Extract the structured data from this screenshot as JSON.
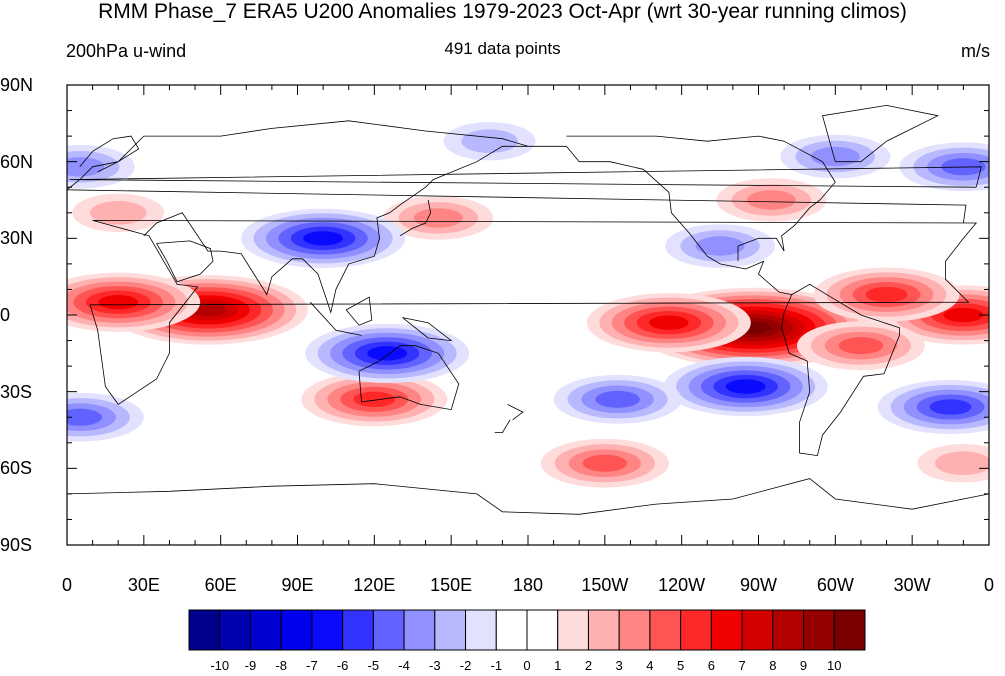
{
  "figure": {
    "title": "RMM Phase_7 ERA5 U200 Anomalies 1979-2023 Oct-Apr (wrt 30-year running climos)",
    "left_label": "200hPa u-wind",
    "center_label": "491 data points",
    "right_label": "m/s"
  },
  "axes": {
    "lat_labels": [
      "90N",
      "60N",
      "30N",
      "0",
      "30S",
      "60S",
      "90S"
    ],
    "lon_labels": [
      "0",
      "30E",
      "60E",
      "90E",
      "120E",
      "150E",
      "180",
      "150W",
      "120W",
      "90W",
      "60W",
      "30W",
      "0"
    ]
  },
  "colorbar": {
    "labels": [
      "-10",
      "-9",
      "-8",
      "-7",
      "-6",
      "-5",
      "-4",
      "-3",
      "-2",
      "-1",
      "0",
      "1",
      "2",
      "3",
      "4",
      "5",
      "6",
      "7",
      "8",
      "9",
      "10"
    ],
    "colors": [
      "#00008c",
      "#0000b0",
      "#0000d2",
      "#0000ee",
      "#0a0aff",
      "#3333ff",
      "#6262ff",
      "#9090ff",
      "#b8b8ff",
      "#e2e2ff",
      "#ffffff",
      "#ffffff",
      "#ffdcdc",
      "#ffb0b0",
      "#ff8484",
      "#ff5454",
      "#ff2828",
      "#f00000",
      "#d40000",
      "#b40000",
      "#960000",
      "#7a0000"
    ]
  },
  "chart_data": {
    "type": "heatmap",
    "variable": "200hPa u-wind",
    "units": "m/s",
    "levels": [
      -10,
      -9,
      -8,
      -7,
      -6,
      -5,
      -4,
      -3,
      -2,
      -1,
      0,
      1,
      2,
      3,
      4,
      5,
      6,
      7,
      8,
      9,
      10
    ],
    "lon_range": [
      0,
      360
    ],
    "lat_range": [
      -90,
      90
    ],
    "anomaly_centers": [
      {
        "lon": 55,
        "lat": 2,
        "value": 8
      },
      {
        "lon": 20,
        "lat": 5,
        "value": 6
      },
      {
        "lon": 268,
        "lat": -5,
        "value": 10
      },
      {
        "lon": 235,
        "lat": -3,
        "value": 6
      },
      {
        "lon": 350,
        "lat": 0,
        "value": 6
      },
      {
        "lon": 320,
        "lat": 8,
        "value": 5
      },
      {
        "lon": 310,
        "lat": -12,
        "value": 4
      },
      {
        "lon": 145,
        "lat": 38,
        "value": 3
      },
      {
        "lon": 275,
        "lat": 45,
        "value": 3
      },
      {
        "lon": 120,
        "lat": -33,
        "value": 5
      },
      {
        "lon": 210,
        "lat": -58,
        "value": 4
      },
      {
        "lon": 350,
        "lat": -58,
        "value": 2
      },
      {
        "lon": 20,
        "lat": 40,
        "value": 2
      },
      {
        "lon": 125,
        "lat": -15,
        "value": -6
      },
      {
        "lon": 100,
        "lat": 30,
        "value": -6
      },
      {
        "lon": 265,
        "lat": -28,
        "value": -6
      },
      {
        "lon": 215,
        "lat": -33,
        "value": -4
      },
      {
        "lon": 345,
        "lat": -36,
        "value": -5
      },
      {
        "lon": 5,
        "lat": -40,
        "value": -4
      },
      {
        "lon": 255,
        "lat": 27,
        "value": -3
      },
      {
        "lon": 300,
        "lat": 62,
        "value": -3
      },
      {
        "lon": 350,
        "lat": 58,
        "value": -4
      },
      {
        "lon": 5,
        "lat": 58,
        "value": -3
      },
      {
        "lon": 165,
        "lat": 68,
        "value": -2
      }
    ]
  }
}
